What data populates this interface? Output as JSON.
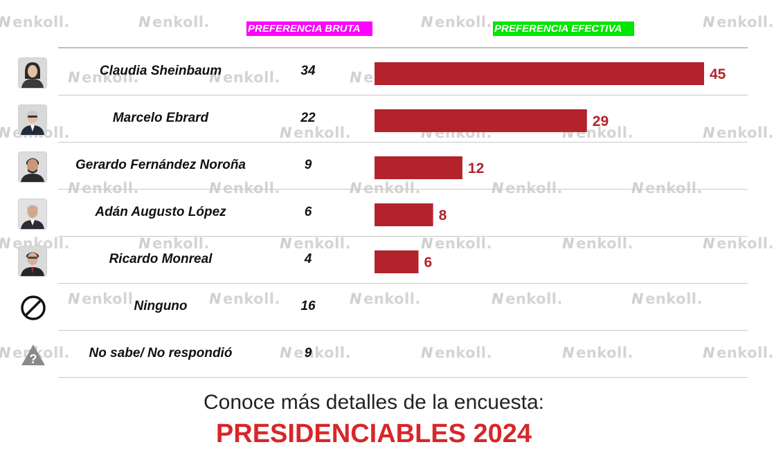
{
  "watermark": {
    "text": "enkoll."
  },
  "headers": {
    "bruta": {
      "label": "PREFERENCIA BRUTA",
      "bg": "#ff00ff"
    },
    "efectiva": {
      "label": "PREFERENCIA EFECTIVA",
      "bg": "#00e600"
    }
  },
  "bar_color": "#b3232b",
  "chart_data": {
    "type": "bar",
    "orientation": "horizontal",
    "title": "",
    "xlabel": "",
    "ylabel": "",
    "xlim": [
      0,
      45
    ],
    "grid": false,
    "legend": "none",
    "categories": [
      "Claudia Sheinbaum",
      "Marcelo Ebrard",
      "Gerardo Fernández Noroña",
      "Adán Augusto López",
      "Ricardo Monreal",
      "Ninguno",
      "No sabe/ No respondió"
    ],
    "series": [
      {
        "name": "PREFERENCIA BRUTA",
        "values": [
          34,
          22,
          9,
          6,
          4,
          16,
          9
        ]
      },
      {
        "name": "PREFERENCIA EFECTIVA",
        "values": [
          45,
          29,
          12,
          8,
          6,
          null,
          null
        ]
      }
    ]
  },
  "rows": [
    {
      "name": "Claudia Sheinbaum",
      "raw": "34",
      "effective": "45",
      "icon": "candidate-photo"
    },
    {
      "name": "Marcelo Ebrard",
      "raw": "22",
      "effective": "29",
      "icon": "candidate-photo"
    },
    {
      "name": "Gerardo Fernández Noroña",
      "raw": "9",
      "effective": "12",
      "icon": "candidate-photo"
    },
    {
      "name": "Adán Augusto López",
      "raw": "6",
      "effective": "8",
      "icon": "candidate-photo"
    },
    {
      "name": "Ricardo Monreal",
      "raw": "4",
      "effective": "6",
      "icon": "candidate-photo"
    },
    {
      "name": "Ninguno",
      "raw": "16",
      "effective": null,
      "icon": "prohibited-icon"
    },
    {
      "name": "No sabe/ No respondió",
      "raw": "9",
      "effective": null,
      "icon": "question-warning-icon"
    }
  ],
  "footer": {
    "line1": "Conoce más detalles de la encuesta:",
    "line2": "PRESIDENCIABLES 2024"
  }
}
